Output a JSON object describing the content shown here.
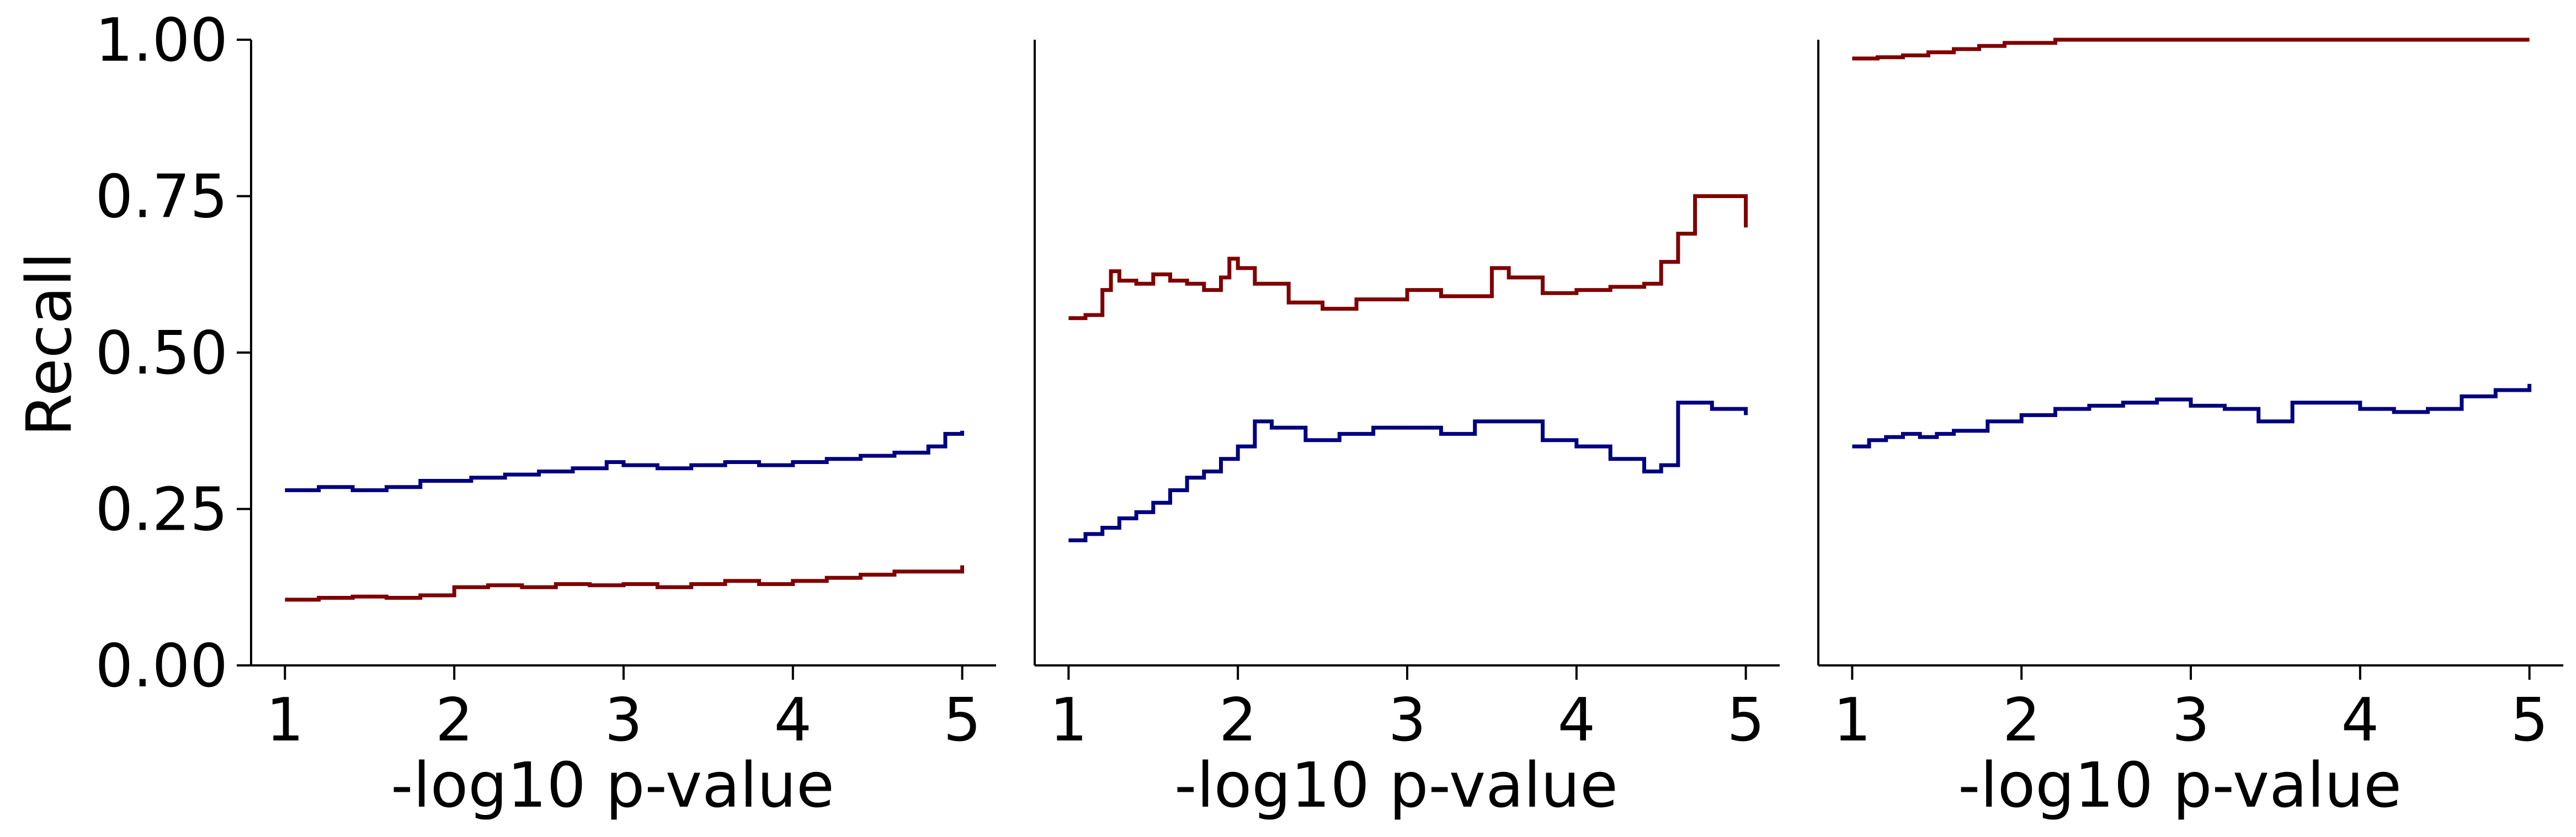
{
  "colors": {
    "navy": "#00007f",
    "darkred": "#7f0000",
    "axis": "#000000"
  },
  "chart_data": [
    {
      "type": "line",
      "ylabel": "Recall",
      "xlabel": "-log10 p-value",
      "xlim": [
        0.8,
        5.2
      ],
      "ylim": [
        0,
        1
      ],
      "xticks": [
        "1",
        "2",
        "3",
        "4",
        "5"
      ],
      "yticks": [
        "0.00",
        "0.25",
        "0.50",
        "0.75",
        "1.00"
      ],
      "grid": false,
      "series": [
        {
          "color": "#00007f",
          "x": [
            1.0,
            1.2,
            1.4,
            1.6,
            1.8,
            1.95,
            2.1,
            2.3,
            2.5,
            2.7,
            2.9,
            3.0,
            3.2,
            3.4,
            3.6,
            3.8,
            4.0,
            4.2,
            4.4,
            4.6,
            4.8,
            4.9,
            5.0
          ],
          "y": [
            0.28,
            0.285,
            0.28,
            0.285,
            0.295,
            0.295,
            0.3,
            0.305,
            0.31,
            0.315,
            0.325,
            0.32,
            0.315,
            0.32,
            0.325,
            0.32,
            0.325,
            0.33,
            0.335,
            0.34,
            0.35,
            0.37,
            0.375
          ]
        },
        {
          "color": "#7f0000",
          "x": [
            1.0,
            1.2,
            1.4,
            1.6,
            1.8,
            2.0,
            2.2,
            2.4,
            2.6,
            2.8,
            3.0,
            3.2,
            3.4,
            3.6,
            3.8,
            4.0,
            4.2,
            4.4,
            4.6,
            4.8,
            5.0
          ],
          "y": [
            0.105,
            0.108,
            0.11,
            0.108,
            0.112,
            0.125,
            0.128,
            0.125,
            0.13,
            0.128,
            0.13,
            0.125,
            0.13,
            0.135,
            0.13,
            0.135,
            0.14,
            0.145,
            0.15,
            0.15,
            0.16
          ]
        }
      ]
    },
    {
      "type": "line",
      "ylabel": "",
      "xlabel": "-log10 p-value",
      "xlim": [
        0.8,
        5.2
      ],
      "ylim": [
        0,
        1
      ],
      "xticks": [
        "1",
        "2",
        "3",
        "4",
        "5"
      ],
      "yticks": [],
      "grid": false,
      "series": [
        {
          "color": "#00007f",
          "x": [
            1.0,
            1.1,
            1.2,
            1.3,
            1.4,
            1.5,
            1.6,
            1.7,
            1.8,
            1.9,
            2.0,
            2.1,
            2.2,
            2.4,
            2.6,
            2.8,
            3.0,
            3.2,
            3.4,
            3.5,
            3.6,
            3.8,
            4.0,
            4.2,
            4.4,
            4.5,
            4.6,
            4.8,
            5.0
          ],
          "y": [
            0.2,
            0.21,
            0.22,
            0.235,
            0.245,
            0.26,
            0.28,
            0.3,
            0.31,
            0.33,
            0.35,
            0.39,
            0.38,
            0.36,
            0.37,
            0.38,
            0.38,
            0.37,
            0.39,
            0.39,
            0.39,
            0.36,
            0.35,
            0.33,
            0.31,
            0.32,
            0.42,
            0.41,
            0.4
          ]
        },
        {
          "color": "#7f0000",
          "x": [
            1.0,
            1.1,
            1.2,
            1.25,
            1.3,
            1.4,
            1.5,
            1.6,
            1.7,
            1.8,
            1.9,
            1.95,
            2.0,
            2.1,
            2.3,
            2.5,
            2.7,
            2.9,
            3.0,
            3.2,
            3.4,
            3.5,
            3.6,
            3.8,
            4.0,
            4.2,
            4.4,
            4.5,
            4.6,
            4.7,
            4.85,
            5.0
          ],
          "y": [
            0.555,
            0.56,
            0.6,
            0.63,
            0.615,
            0.61,
            0.625,
            0.615,
            0.61,
            0.6,
            0.62,
            0.65,
            0.635,
            0.61,
            0.58,
            0.57,
            0.585,
            0.585,
            0.6,
            0.59,
            0.59,
            0.635,
            0.62,
            0.595,
            0.6,
            0.605,
            0.61,
            0.645,
            0.69,
            0.75,
            0.75,
            0.7
          ]
        }
      ]
    },
    {
      "type": "line",
      "ylabel": "",
      "xlabel": "-log10 p-value",
      "xlim": [
        0.8,
        5.2
      ],
      "ylim": [
        0,
        1
      ],
      "xticks": [
        "1",
        "2",
        "3",
        "4",
        "5"
      ],
      "yticks": [],
      "grid": false,
      "series": [
        {
          "color": "#00007f",
          "x": [
            1.0,
            1.1,
            1.2,
            1.3,
            1.4,
            1.5,
            1.6,
            1.8,
            2.0,
            2.2,
            2.4,
            2.6,
            2.8,
            3.0,
            3.2,
            3.4,
            3.6,
            3.8,
            4.0,
            4.2,
            4.4,
            4.6,
            4.8,
            5.0
          ],
          "y": [
            0.35,
            0.36,
            0.365,
            0.37,
            0.365,
            0.37,
            0.375,
            0.39,
            0.4,
            0.41,
            0.415,
            0.42,
            0.425,
            0.415,
            0.41,
            0.39,
            0.42,
            0.42,
            0.41,
            0.405,
            0.41,
            0.43,
            0.44,
            0.45
          ]
        },
        {
          "color": "#7f0000",
          "x": [
            1.0,
            1.15,
            1.3,
            1.45,
            1.6,
            1.75,
            1.9,
            2.2,
            3.0,
            4.0,
            5.0
          ],
          "y": [
            0.97,
            0.972,
            0.975,
            0.98,
            0.985,
            0.99,
            0.995,
            1.0,
            1.0,
            1.0,
            1.0
          ]
        }
      ]
    }
  ]
}
